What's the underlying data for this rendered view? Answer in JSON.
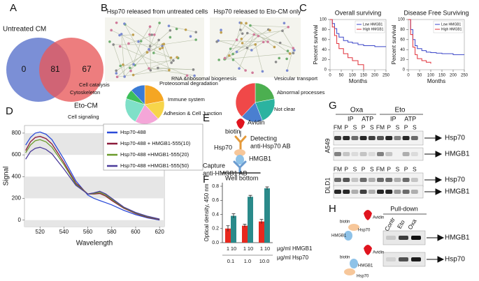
{
  "panel_labels": [
    "A",
    "B",
    "C",
    "D",
    "E",
    "F",
    "G",
    "H"
  ],
  "venn": {
    "left_label": "Untreated CM",
    "right_label": "Eto-CM",
    "left_only": 0,
    "both": 81,
    "right_only": 67
  },
  "chart_data": [
    {
      "type": "pie",
      "title": "Hsp70 released from untreated cells",
      "categories": [
        "Proteosomal degradation",
        "Immune system",
        "Adhesion & Cell Junction",
        "Cell signaling",
        "Cytoskeleton",
        "Cell catalysis"
      ],
      "values": [
        22,
        16,
        20,
        22,
        8,
        12
      ],
      "colors": [
        "#f5a623",
        "#f7d54a",
        "#f4a6d8",
        "#7fe0c8",
        "#3cbf5a",
        "#3a7bd5"
      ]
    },
    {
      "type": "pie",
      "title": "Hsp70 released to Eto-CM only",
      "categories": [
        "Vesicular transport",
        "Abnormal processes",
        "Not clear",
        "RNA &ribosomal biogenesis"
      ],
      "values": [
        22,
        22,
        18,
        38
      ],
      "colors": [
        "#4caf50",
        "#2bb3a0",
        "#4a7fd0",
        "#f04848"
      ]
    },
    {
      "type": "line",
      "step": true,
      "title": "Overall surviving",
      "xlabel": "Months",
      "ylabel": "Percent survival",
      "x": [
        0,
        10,
        20,
        30,
        40,
        60,
        80,
        100,
        125,
        150,
        200,
        250
      ],
      "series": [
        {
          "name": "Low HMGB1",
          "color": "#3b46c8",
          "values": [
            100,
            92,
            82,
            72,
            65,
            58,
            55,
            53,
            50,
            48,
            46,
            46
          ]
        },
        {
          "name": "High HMGB1",
          "color": "#e0303a",
          "values": [
            100,
            85,
            68,
            52,
            42,
            32,
            24,
            18,
            10,
            0,
            null,
            null
          ]
        }
      ],
      "xlim": [
        0,
        250
      ],
      "ylim": [
        0,
        100
      ],
      "xticks": [
        0,
        50,
        100,
        150,
        200,
        250
      ],
      "yticks": [
        0,
        20,
        40,
        60,
        80,
        100
      ]
    },
    {
      "type": "line",
      "step": true,
      "title": "Disease Free Surviving",
      "xlabel": "Months",
      "ylabel": "Percent survival",
      "x": [
        0,
        10,
        20,
        30,
        40,
        60,
        80,
        100,
        125,
        150,
        200,
        250
      ],
      "series": [
        {
          "name": "Low HMGB1",
          "color": "#3b46c8",
          "values": [
            100,
            80,
            60,
            48,
            42,
            38,
            35,
            34,
            33,
            32,
            30,
            30
          ]
        },
        {
          "name": "High HMGB1",
          "color": "#e0303a",
          "values": [
            100,
            70,
            45,
            30,
            22,
            18,
            15,
            12,
            null,
            null,
            null,
            null
          ]
        }
      ],
      "xlim": [
        0,
        250
      ],
      "ylim": [
        0,
        100
      ],
      "xticks": [
        0,
        50,
        100,
        150,
        200,
        250
      ],
      "yticks": [
        0,
        20,
        40,
        60,
        80,
        100
      ]
    },
    {
      "type": "line",
      "xlabel": "Wavelength",
      "ylabel": "Signal",
      "x": [
        508,
        512,
        516,
        520,
        525,
        530,
        540,
        550,
        560,
        565,
        570,
        575,
        580,
        590,
        600,
        610,
        620
      ],
      "series": [
        {
          "name": "Hsp70-488",
          "color": "#2b4bd8",
          "values": [
            690,
            760,
            800,
            810,
            790,
            740,
            560,
            360,
            230,
            200,
            180,
            160,
            140,
            90,
            50,
            20,
            0
          ]
        },
        {
          "name": "Hsp70-488 + HMGB1-555(10)",
          "color": "#8b1a3a",
          "values": [
            640,
            720,
            760,
            770,
            750,
            700,
            530,
            340,
            240,
            240,
            245,
            220,
            180,
            110,
            60,
            25,
            5
          ]
        },
        {
          "name": "Hsp70-488 +HMGB1-555(20)",
          "color": "#6a9a2a",
          "values": [
            620,
            690,
            730,
            740,
            720,
            670,
            510,
            330,
            240,
            245,
            255,
            230,
            190,
            115,
            65,
            30,
            8
          ]
        },
        {
          "name": "Hsp70-488 +HMGB1-555(50)",
          "color": "#4a3a9a",
          "values": [
            560,
            630,
            660,
            670,
            650,
            610,
            470,
            320,
            240,
            250,
            265,
            240,
            200,
            120,
            70,
            35,
            10
          ]
        }
      ],
      "xlim": [
        507,
        624
      ],
      "ylim": [
        -60,
        870
      ],
      "xticks": [
        520,
        540,
        560,
        580,
        600,
        620
      ],
      "yticks": [
        0,
        200,
        400,
        600,
        800
      ],
      "bands": true
    },
    {
      "type": "bar",
      "ylabel": "Optical density, 450 nm",
      "categories": [
        "1",
        "10",
        "1",
        "10",
        "1",
        "10"
      ],
      "groups": [
        "0.1",
        "1.0",
        "10.0"
      ],
      "values": [
        0.2,
        0.38,
        0.24,
        0.65,
        0.3,
        0.77
      ],
      "errors": [
        0.04,
        0.03,
        0.02,
        0.02,
        0.03,
        0.02
      ],
      "colors": [
        "#e8281e",
        "#2a8a8a"
      ],
      "row_labels": [
        "μg/ml HMGB1",
        "μg/ml Hsp70"
      ],
      "ylim": [
        0,
        0.85
      ],
      "yticks": [
        {
          "value": 0,
          "label": "0.0"
        },
        0.2,
        0.4,
        0.6,
        0.8
      ]
    }
  ],
  "elisa_diagram": {
    "avidin": "Avidin",
    "biotin": "biotin",
    "detecting": [
      "Detecting",
      "anti-Hsp70 AB"
    ],
    "hsp70": "Hsp70",
    "hmgb1": "HMGB1",
    "capture": [
      "Capture",
      "anti-HMGB1 AB"
    ],
    "well": "Well bottom"
  },
  "western": {
    "drugs": [
      "Oxa",
      "Eto"
    ],
    "assays": [
      "IP",
      "ATP",
      "IP",
      "ATP"
    ],
    "lanes": [
      "FM",
      "P",
      "S",
      "P",
      "S",
      "FM",
      "P",
      "S",
      "P",
      "S"
    ],
    "cell_lines": [
      "A549",
      "DLD1"
    ],
    "proteins": [
      "Hsp70",
      "HMGB1"
    ]
  },
  "pulldown": {
    "title": "Pull-down",
    "lanes": [
      "Contr",
      "Eto",
      "Oxa"
    ],
    "proteins": [
      "HMGB1",
      "Hsp70"
    ],
    "schematic": {
      "avidin": "Avidin",
      "biotin": "biotin",
      "hsp70": "Hsp70",
      "hmgb1": "HMGB1"
    }
  }
}
